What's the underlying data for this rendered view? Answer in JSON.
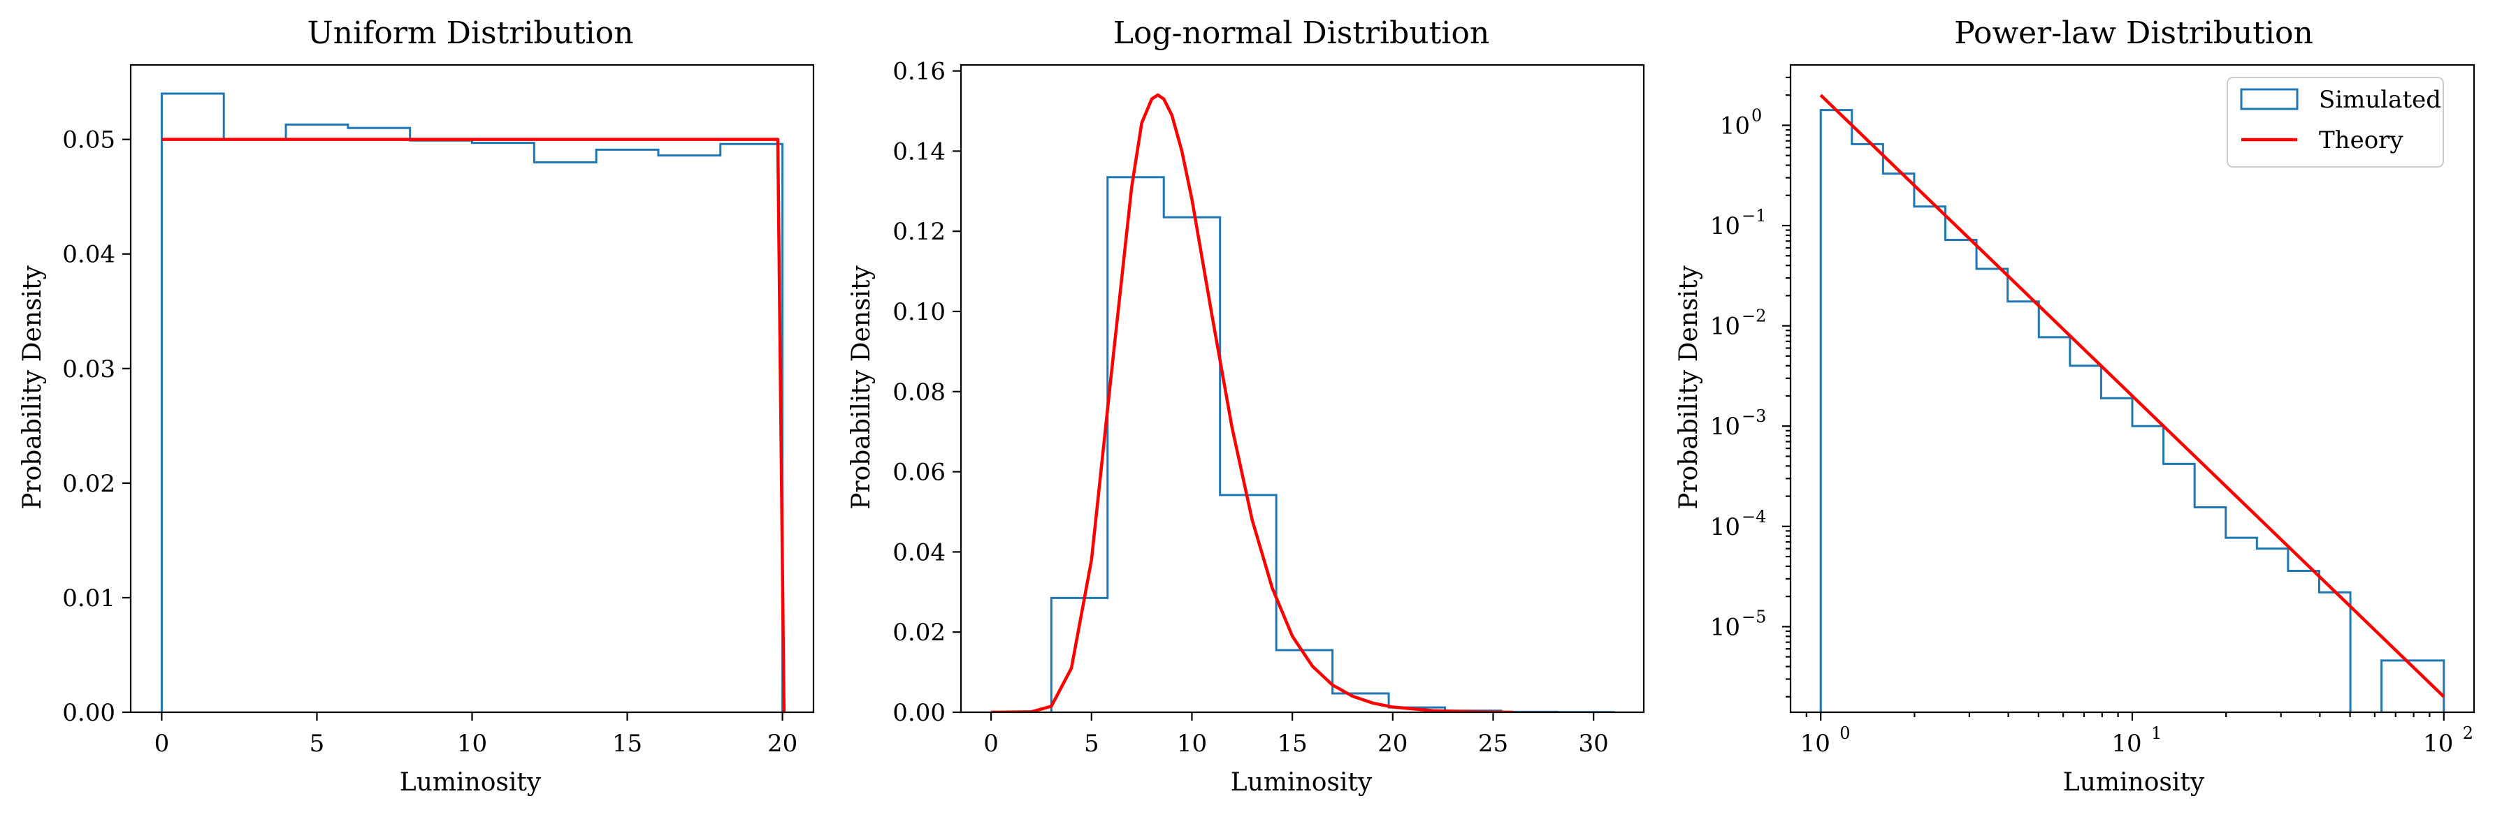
{
  "colors": {
    "simulated": "#1f77b4",
    "theory": "#ff0000"
  },
  "legend": {
    "simulated": "Simulated",
    "theory": "Theory",
    "placement": "top-right"
  },
  "chart_data": [
    {
      "type": "histogram",
      "title": "Uniform Distribution",
      "xlabel": "Luminosity",
      "ylabel": "Probability Density",
      "xlim": [
        -1,
        21
      ],
      "ylim": [
        0,
        0.0565
      ],
      "xticks": [
        0,
        5,
        10,
        15,
        20
      ],
      "xtick_labels": [
        "0",
        "5",
        "10",
        "15",
        "20"
      ],
      "yticks": [
        0,
        0.01,
        0.02,
        0.03,
        0.04,
        0.05
      ],
      "ytick_labels": [
        "0.00",
        "0.01",
        "0.02",
        "0.03",
        "0.04",
        "0.05"
      ],
      "series": [
        {
          "kind": "histogram",
          "bin_edges": [
            0,
            2,
            4,
            6,
            8,
            10,
            12,
            14,
            16,
            18,
            20
          ],
          "values": [
            0.054,
            0.05,
            0.0513,
            0.051,
            0.0499,
            0.0497,
            0.048,
            0.0491,
            0.0486,
            0.0496
          ]
        },
        {
          "kind": "line",
          "x": [
            0,
            19.85,
            20.05
          ],
          "y": [
            0.05,
            0.05,
            0.0
          ]
        }
      ]
    },
    {
      "type": "histogram",
      "title": "Log-normal Distribution",
      "xlabel": "Luminosity",
      "ylabel": "Probability Density",
      "xlim": [
        -1.5,
        32.5
      ],
      "ylim": [
        0,
        0.1615
      ],
      "xticks": [
        0,
        5,
        10,
        15,
        20,
        25,
        30
      ],
      "xtick_labels": [
        "0",
        "5",
        "10",
        "15",
        "20",
        "25",
        "30"
      ],
      "yticks": [
        0,
        0.02,
        0.04,
        0.06,
        0.08,
        0.1,
        0.12,
        0.14,
        0.16
      ],
      "ytick_labels": [
        "0.00",
        "0.02",
        "0.04",
        "0.06",
        "0.08",
        "0.10",
        "0.12",
        "0.14",
        "0.16"
      ],
      "series": [
        {
          "kind": "histogram",
          "bin_edges": [
            3.0,
            5.8,
            8.6,
            11.4,
            14.2,
            17.0,
            19.8,
            22.6,
            25.4,
            28.2,
            31.0
          ],
          "values": [
            0.0285,
            0.1335,
            0.1235,
            0.0542,
            0.0155,
            0.0047,
            0.0012,
            0.0004,
            0.0001,
            5e-05
          ]
        },
        {
          "kind": "line",
          "x": [
            0,
            2,
            3,
            4,
            5,
            6,
            7,
            7.5,
            8,
            8.3,
            8.6,
            9,
            9.5,
            10,
            11,
            12,
            13,
            14,
            15,
            16,
            17,
            18,
            19,
            20,
            22,
            24,
            26
          ],
          "y": [
            0,
            0.0001,
            0.0015,
            0.011,
            0.038,
            0.085,
            0.131,
            0.147,
            0.153,
            0.154,
            0.153,
            0.149,
            0.14,
            0.128,
            0.099,
            0.071,
            0.048,
            0.031,
            0.019,
            0.0115,
            0.0068,
            0.004,
            0.0023,
            0.0013,
            0.0004,
            0.0001,
            0.0
          ]
        }
      ]
    },
    {
      "type": "histogram",
      "title": "Power-law Distribution",
      "xlabel": "Luminosity",
      "ylabel": "Probability Density",
      "xscale": "log",
      "yscale": "log",
      "xlim": [
        0.8,
        125
      ],
      "ylim": [
        1.4e-06,
        4
      ],
      "xticks": [
        1,
        10,
        100
      ],
      "xtick_labels": [
        [
          "10",
          "0"
        ],
        [
          "10",
          "1"
        ],
        [
          "10",
          "2"
        ]
      ],
      "yticks": [
        1e-05,
        0.0001,
        0.001,
        0.01,
        0.1,
        1
      ],
      "ytick_labels": [
        [
          "10",
          "−5"
        ],
        [
          "10",
          "−4"
        ],
        [
          "10",
          "−3"
        ],
        [
          "10",
          "−2"
        ],
        [
          "10",
          "−1"
        ],
        [
          "10",
          "0"
        ]
      ],
      "series": [
        {
          "kind": "histogram",
          "bin_edges": [
            1,
            1.259,
            1.585,
            1.995,
            2.512,
            3.162,
            3.981,
            5.012,
            6.31,
            7.943,
            10,
            12.589,
            15.849,
            19.953,
            25.119,
            31.623,
            39.811,
            50.119,
            63.096,
            79.433,
            100
          ],
          "values": [
            1.42,
            0.65,
            0.33,
            0.155,
            0.072,
            0.037,
            0.0175,
            0.0077,
            0.004,
            0.0019,
            0.001,
            0.00042,
            0.000155,
            7.7e-05,
            6e-05,
            3.6e-05,
            2.2e-05,
            0,
            4.6e-06,
            4.6e-06
          ]
        },
        {
          "kind": "line",
          "x": [
            1,
            100
          ],
          "y": [
            2.0,
            2e-06
          ]
        }
      ]
    }
  ]
}
